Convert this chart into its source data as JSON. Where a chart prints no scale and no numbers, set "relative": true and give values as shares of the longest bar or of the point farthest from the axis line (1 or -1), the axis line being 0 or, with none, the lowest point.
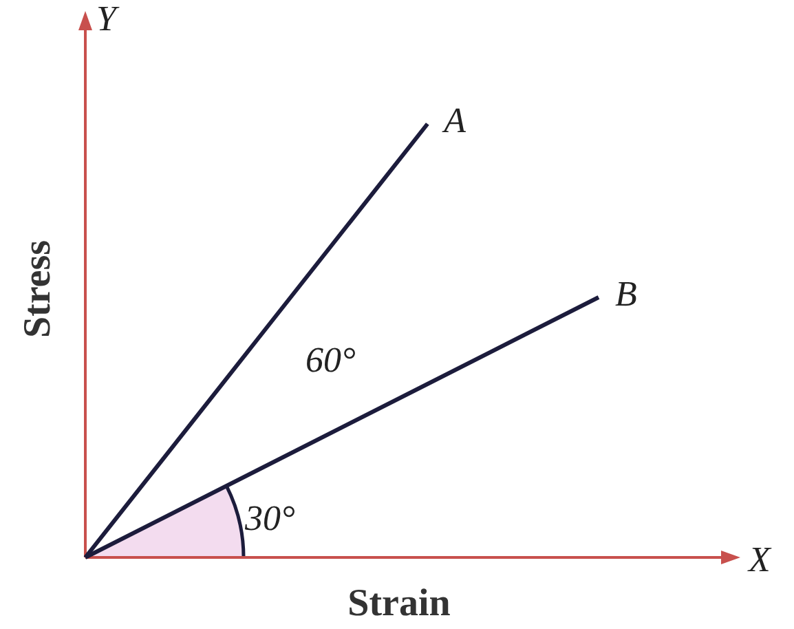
{
  "chart_data": {
    "type": "line",
    "relative": true,
    "xlabel": "Strain",
    "ylabel": "Stress",
    "categories": [
      null,
      null,
      null,
      null
    ],
    "series": [
      {
        "name": "A",
        "color": "#1c1c3c",
        "values": [
          0,
          0.5,
          1,
          null
        ]
      },
      {
        "name": "B",
        "color": "#1c1c3c",
        "values": [
          0,
          0.2,
          0.4,
          0.6
        ]
      }
    ],
    "annotations": [
      "X",
      "Y",
      "60°",
      "30°"
    ],
    "legend": false,
    "marker": "none",
    "line_style": "solid"
  }
}
